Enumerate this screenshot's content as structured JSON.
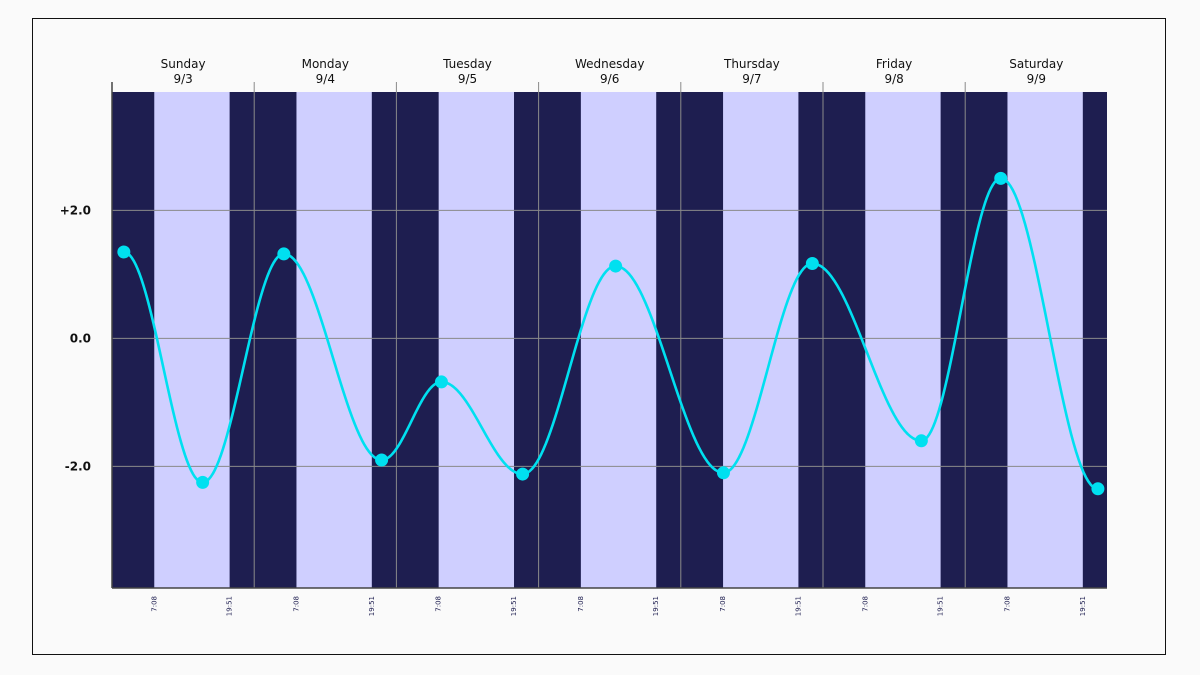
{
  "chart_data": {
    "type": "line",
    "title": "",
    "xlabel": "",
    "ylabel": "",
    "ylim": [
      -3.9,
      3.85
    ],
    "x_axis": {
      "days": [
        {
          "name": "Sunday",
          "date": "9/3"
        },
        {
          "name": "Monday",
          "date": "9/4"
        },
        {
          "name": "Tuesday",
          "date": "9/5"
        },
        {
          "name": "Wednesday",
          "date": "9/6"
        },
        {
          "name": "Thursday",
          "date": "9/7"
        },
        {
          "name": "Friday",
          "date": "9/8"
        },
        {
          "name": "Saturday",
          "date": "9/9"
        }
      ],
      "sunrise_label": "7:08",
      "sunset_label": "19:51",
      "sunrise_hour": 7.133,
      "sunset_hour": 19.85
    },
    "y_ticks": [
      {
        "value": 2.0,
        "label": "+2.0"
      },
      {
        "value": 0.0,
        "label": "0.0"
      },
      {
        "value": -2.0,
        "label": "-2.0"
      }
    ],
    "grid": true,
    "series": [
      {
        "points": [
          {
            "day": 0,
            "hour": 2.0,
            "value": 1.35
          },
          {
            "day": 0,
            "hour": 15.3,
            "value": -2.25
          },
          {
            "day": 1,
            "hour": 5.0,
            "value": 1.32
          },
          {
            "day": 1,
            "hour": 21.5,
            "value": -1.9
          },
          {
            "day": 2,
            "hour": 7.6,
            "value": -0.68
          },
          {
            "day": 2,
            "hour": 21.3,
            "value": -2.12
          },
          {
            "day": 3,
            "hour": 13.0,
            "value": 1.13
          },
          {
            "day": 4,
            "hour": 7.2,
            "value": -2.1
          },
          {
            "day": 4,
            "hour": 22.2,
            "value": 1.17
          },
          {
            "day": 5,
            "hour": 16.6,
            "value": -1.6
          },
          {
            "day": 6,
            "hour": 6.0,
            "value": 2.5
          },
          {
            "day": 6,
            "hour": 22.4,
            "value": -2.35
          }
        ]
      }
    ],
    "colors": {
      "night": "#1e1e50",
      "day": "#cfcfff",
      "line": "#00e0f0",
      "grid": "#8a8a8a",
      "axis": "#444444"
    }
  }
}
